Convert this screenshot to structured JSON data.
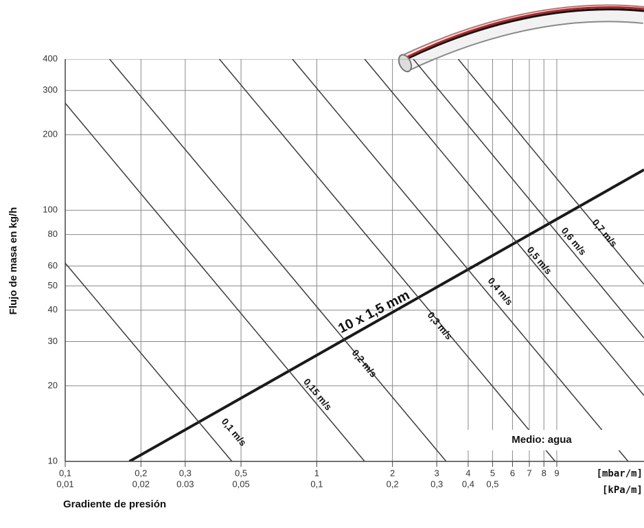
{
  "chart_data": {
    "type": "line",
    "xscale": "log",
    "yscale": "log",
    "grid": true,
    "y_label": "Flujo de masa en kg/h",
    "x_label": "Gradiente de presión",
    "x_unit": "[mbar/m]",
    "x2_unit": "[kPa/m]",
    "annotation": "Medio: agua",
    "xlim": [
      0.1,
      20
    ],
    "x2lim": [
      0.01,
      2
    ],
    "ylim": [
      10,
      400
    ],
    "xticks": [
      {
        "value": 0.1,
        "label": "0,1"
      },
      {
        "value": 0.2,
        "label": "0,2"
      },
      {
        "value": 0.3,
        "label": "0,3"
      },
      {
        "value": 0.5,
        "label": "0,5"
      },
      1,
      2,
      3,
      4,
      5,
      6,
      7,
      8,
      9
    ],
    "x2ticks": [
      {
        "value": 0.01,
        "label": "0,01"
      },
      {
        "value": 0.02,
        "label": "0,02"
      },
      {
        "value": 0.03,
        "label": "0.03"
      },
      {
        "value": 0.05,
        "label": "0,05"
      },
      {
        "value": 0.1,
        "label": "0,1"
      },
      {
        "value": 0.2,
        "label": "0,2"
      },
      {
        "value": 0.3,
        "label": "0,3"
      },
      {
        "value": 0.4,
        "label": "0,4"
      },
      {
        "value": 0.5,
        "label": "0,5"
      }
    ],
    "yticks": [
      10,
      20,
      30,
      40,
      50,
      60,
      80,
      100,
      200,
      300,
      400
    ],
    "series": [
      {
        "name": "10 x 1,5 mm",
        "color": "#1a1a1a",
        "x": [
          0.18,
          20
        ],
        "values": [
          10,
          145
        ]
      },
      {
        "name": "0,1 m/s",
        "color": "#3a3a3a",
        "x": [
          0.1,
          0.46
        ],
        "values": [
          61.6,
          10
        ]
      },
      {
        "name": "0,15 m/s",
        "color": "#3a3a3a",
        "x": [
          0.1,
          1.55
        ],
        "values": [
          267,
          10
        ]
      },
      {
        "name": "0,2 m/s",
        "color": "#3a3a3a",
        "x": [
          0.15,
          3.27
        ],
        "values": [
          400,
          10
        ]
      },
      {
        "name": "0,3 m/s",
        "color": "#3a3a3a",
        "x": [
          0.41,
          8.87
        ],
        "values": [
          400,
          10
        ]
      },
      {
        "name": "0,4 m/s",
        "color": "#3a3a3a",
        "x": [
          0.8,
          17.3
        ],
        "values": [
          400,
          10
        ]
      },
      {
        "name": "0,5 m/s",
        "color": "#3a3a3a",
        "x": [
          1.55,
          20
        ],
        "values": [
          400,
          18.3
        ]
      },
      {
        "name": "0,6 m/s",
        "color": "#3a3a3a",
        "x": [
          2.42,
          20
        ],
        "values": [
          400,
          31
        ]
      },
      {
        "name": "0,7 m/s",
        "color": "#3a3a3a",
        "x": [
          3.65,
          20
        ],
        "values": [
          400,
          50.7
        ]
      }
    ]
  }
}
